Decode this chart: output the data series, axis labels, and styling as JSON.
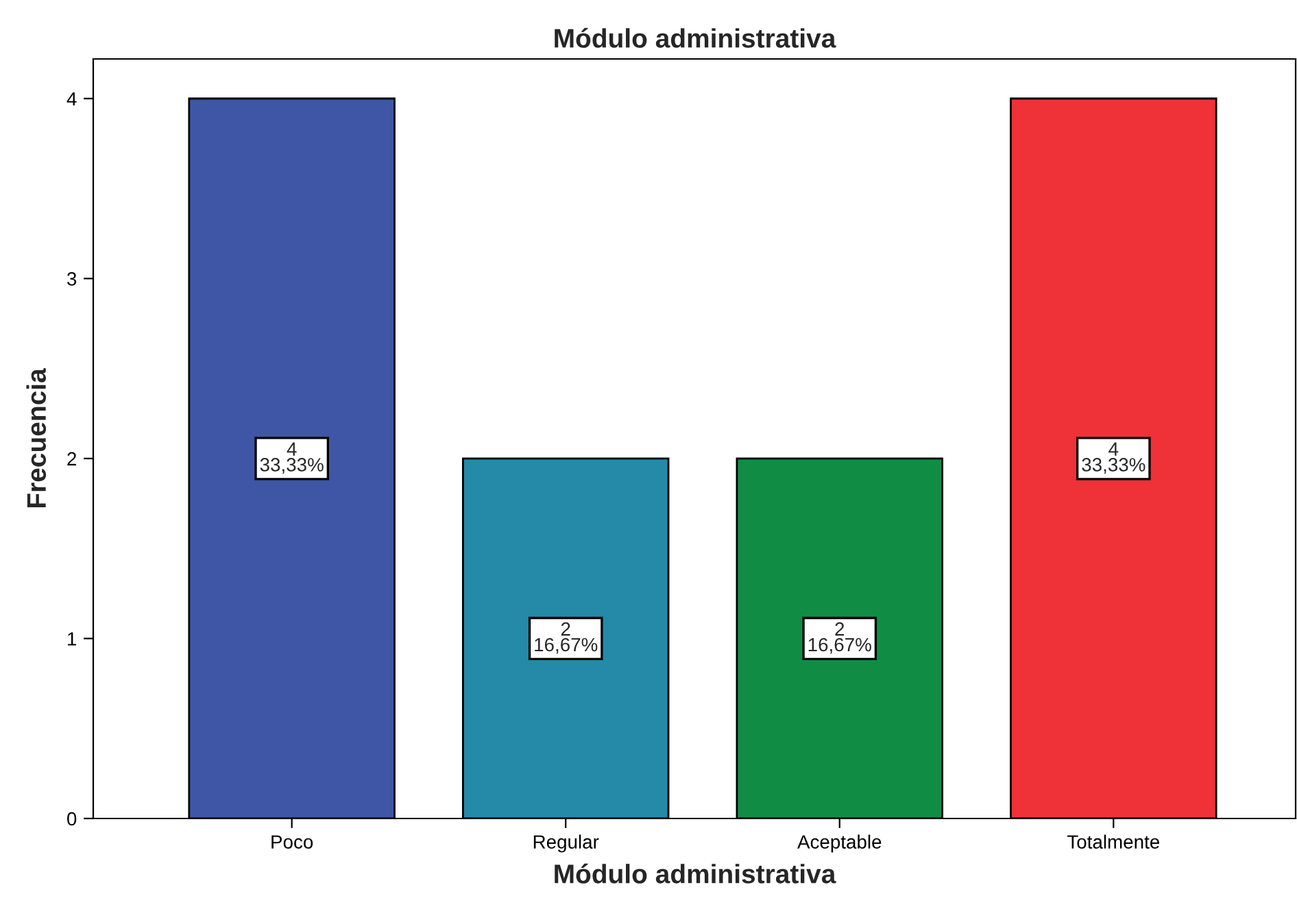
{
  "chart_data": {
    "type": "bar",
    "title": "Módulo administrativa",
    "xlabel": "Módulo administrativa",
    "ylabel": "Frecuencia",
    "categories": [
      "Poco",
      "Regular",
      "Aceptable",
      "Totalmente"
    ],
    "values": [
      4,
      2,
      2,
      4
    ],
    "colors": [
      "#3f56a6",
      "#2589a8",
      "#118c45",
      "#ef3138"
    ],
    "value_labels": [
      "4\n33,33%",
      "2\n16,67%",
      "2\n16,67%",
      "4\n33,33%"
    ],
    "ylim": [
      0,
      4.22
    ],
    "yticks": [
      0,
      1,
      2,
      3,
      4
    ],
    "grid": false,
    "legend": false
  }
}
